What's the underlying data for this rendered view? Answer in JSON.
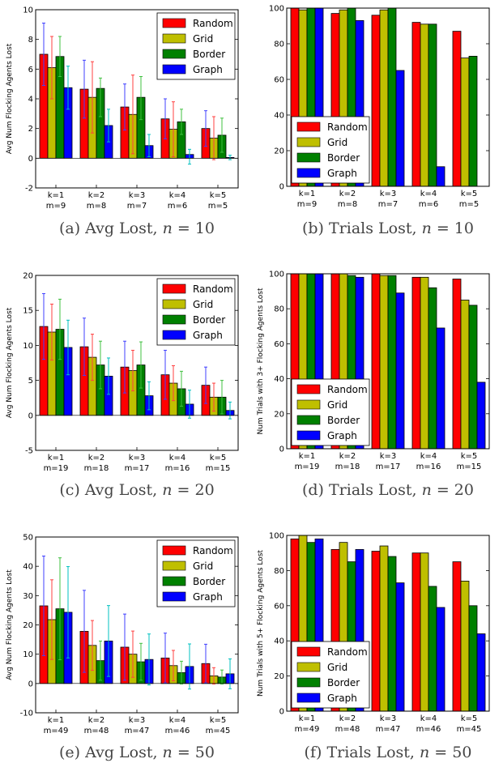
{
  "colors": {
    "Random": "#ff0000",
    "Grid": "#bfbf00",
    "Border": "#008000",
    "Graph": "#0000ff"
  },
  "chart_data": [
    {
      "type": "bar",
      "caption": "(a) Avg Lost, n = 10",
      "ylabel": "Avg Num Flocking Agents Lost",
      "ylim": [
        -2,
        10
      ],
      "yticks": [
        -2,
        0,
        2,
        4,
        6,
        8,
        10
      ],
      "categories": [
        [
          "k=1",
          "m=9"
        ],
        [
          "k=2",
          "m=8"
        ],
        [
          "k=3",
          "m=7"
        ],
        [
          "k=4",
          "m=6"
        ],
        [
          "k=5",
          "m=5"
        ]
      ],
      "legend": "upper-right",
      "series": [
        {
          "name": "Random",
          "values": [
            7.0,
            4.65,
            3.45,
            2.65,
            2.0
          ],
          "err_hi": [
            9.1,
            6.6,
            5.0,
            4.0,
            3.2
          ],
          "err_lo": [
            4.9,
            2.7,
            1.9,
            1.3,
            0.8
          ],
          "err_color": "#4040ff"
        },
        {
          "name": "Grid",
          "values": [
            6.1,
            4.1,
            2.95,
            1.95,
            1.35
          ],
          "err_hi": [
            8.2,
            6.5,
            5.6,
            3.8,
            2.8
          ],
          "err_lo": [
            4.0,
            1.7,
            0.3,
            0.1,
            -0.1
          ],
          "err_color": "#ff4040"
        },
        {
          "name": "Border",
          "values": [
            6.85,
            4.7,
            4.1,
            2.45,
            1.55
          ],
          "err_hi": [
            8.2,
            5.4,
            5.5,
            3.3,
            2.7
          ],
          "err_lo": [
            5.5,
            2.8,
            2.6,
            1.6,
            0.4
          ],
          "err_color": "#40c040"
        },
        {
          "name": "Graph",
          "values": [
            4.75,
            2.2,
            0.85,
            0.25,
            0.05
          ],
          "err_hi": [
            6.2,
            3.3,
            1.6,
            0.6,
            0.2
          ],
          "err_lo": [
            3.3,
            1.1,
            0.1,
            -0.4,
            -0.1
          ],
          "err_color": "#00c0c0"
        }
      ]
    },
    {
      "type": "bar",
      "caption": "(b) Trials Lost, n = 10",
      "ylabel": "",
      "ylim": [
        0,
        100
      ],
      "yticks": [
        0,
        20,
        40,
        60,
        80,
        100
      ],
      "categories": [
        [
          "k=1",
          "m=9"
        ],
        [
          "k=2",
          "m=8"
        ],
        [
          "k=3",
          "m=7"
        ],
        [
          "k=4",
          "m=6"
        ],
        [
          "k=5",
          "m=5"
        ]
      ],
      "legend": "lower-left",
      "series": [
        {
          "name": "Random",
          "values": [
            100,
            97,
            96,
            92,
            87
          ]
        },
        {
          "name": "Grid",
          "values": [
            99,
            99,
            99,
            91,
            72
          ]
        },
        {
          "name": "Border",
          "values": [
            100,
            100,
            100,
            91,
            73
          ]
        },
        {
          "name": "Graph",
          "values": [
            100,
            93,
            65,
            11,
            0
          ]
        }
      ]
    },
    {
      "type": "bar",
      "caption": "(c) Avg Lost, n = 20",
      "ylabel": "Avg Num Flocking Agents Lost",
      "ylim": [
        -5,
        20
      ],
      "yticks": [
        -5,
        0,
        5,
        10,
        15,
        20
      ],
      "categories": [
        [
          "k=1",
          "m=19"
        ],
        [
          "k=2",
          "m=18"
        ],
        [
          "k=3",
          "m=17"
        ],
        [
          "k=4",
          "m=16"
        ],
        [
          "k=5",
          "m=15"
        ]
      ],
      "legend": "upper-right",
      "series": [
        {
          "name": "Random",
          "values": [
            12.7,
            9.8,
            6.9,
            5.8,
            4.3
          ],
          "err_hi": [
            17.4,
            13.9,
            10.6,
            9.3,
            6.9
          ],
          "err_lo": [
            8.0,
            5.7,
            3.2,
            2.3,
            1.7
          ],
          "err_color": "#4040ff"
        },
        {
          "name": "Grid",
          "values": [
            11.9,
            8.3,
            6.4,
            4.6,
            2.6
          ],
          "err_hi": [
            15.9,
            11.6,
            9.3,
            7.1,
            4.6
          ],
          "err_lo": [
            7.9,
            5.0,
            3.5,
            2.1,
            0.6
          ],
          "err_color": "#ff4040"
        },
        {
          "name": "Border",
          "values": [
            12.3,
            7.2,
            7.2,
            3.8,
            2.6
          ],
          "err_hi": [
            16.6,
            10.6,
            10.5,
            6.3,
            5.0
          ],
          "err_lo": [
            8.0,
            3.8,
            3.9,
            1.3,
            0.2
          ],
          "err_color": "#40c040"
        },
        {
          "name": "Graph",
          "values": [
            9.7,
            5.6,
            2.8,
            1.6,
            0.7
          ],
          "err_hi": [
            13.6,
            8.2,
            4.8,
            3.6,
            1.9
          ],
          "err_lo": [
            5.8,
            3.0,
            0.8,
            -0.4,
            -0.5
          ],
          "err_color": "#00c0c0"
        }
      ]
    },
    {
      "type": "bar",
      "caption": "(d) Trials Lost, n = 20",
      "ylabel": "Num Trials with 3+ Flocking Agents Lost",
      "ylim": [
        0,
        100
      ],
      "yticks": [
        0,
        20,
        40,
        60,
        80,
        100
      ],
      "categories": [
        [
          "k=1",
          "m=19"
        ],
        [
          "k=2",
          "m=18"
        ],
        [
          "k=3",
          "m=17"
        ],
        [
          "k=4",
          "m=16"
        ],
        [
          "k=5",
          "m=15"
        ]
      ],
      "legend": "lower-left",
      "series": [
        {
          "name": "Random",
          "values": [
            100,
            100,
            100,
            98,
            97
          ]
        },
        {
          "name": "Grid",
          "values": [
            100,
            100,
            99,
            98,
            85
          ]
        },
        {
          "name": "Border",
          "values": [
            100,
            99,
            99,
            92,
            82
          ]
        },
        {
          "name": "Graph",
          "values": [
            100,
            98,
            89,
            69,
            38
          ]
        }
      ]
    },
    {
      "type": "bar",
      "caption": "(e) Avg Lost, n = 50",
      "ylabel": "Avg Num Flocking Agents Lost",
      "ylim": [
        -10,
        50
      ],
      "yticks": [
        -10,
        0,
        10,
        20,
        30,
        40,
        50
      ],
      "categories": [
        [
          "k=1",
          "m=49"
        ],
        [
          "k=2",
          "m=48"
        ],
        [
          "k=3",
          "m=47"
        ],
        [
          "k=4",
          "m=46"
        ],
        [
          "k=5",
          "m=45"
        ]
      ],
      "legend": "upper-right",
      "series": [
        {
          "name": "Random",
          "values": [
            26.5,
            17.8,
            12.4,
            8.7,
            6.8
          ],
          "err_hi": [
            43.5,
            31.8,
            23.7,
            17.2,
            13.4
          ],
          "err_lo": [
            9.5,
            3.8,
            1.1,
            0.2,
            0.2
          ],
          "err_color": "#4040ff"
        },
        {
          "name": "Grid",
          "values": [
            21.8,
            13.0,
            10.0,
            6.1,
            2.6
          ],
          "err_hi": [
            35.4,
            21.5,
            17.9,
            11.3,
            5.4
          ],
          "err_lo": [
            8.2,
            4.5,
            2.1,
            0.9,
            -0.2
          ],
          "err_color": "#ff4040"
        },
        {
          "name": "Border",
          "values": [
            25.5,
            7.8,
            7.4,
            3.7,
            2.2
          ],
          "err_hi": [
            42.9,
            14.5,
            13.7,
            7.6,
            4.6
          ],
          "err_lo": [
            8.1,
            1.1,
            1.1,
            -0.2,
            -0.2
          ],
          "err_color": "#40c040"
        },
        {
          "name": "Graph",
          "values": [
            24.3,
            14.5,
            8.2,
            5.8,
            3.3
          ],
          "err_hi": [
            39.9,
            26.6,
            16.9,
            13.5,
            8.4
          ],
          "err_lo": [
            8.7,
            2.4,
            -0.5,
            -1.9,
            -1.8
          ],
          "err_color": "#00c0c0"
        }
      ]
    },
    {
      "type": "bar",
      "caption": "(f) Trials Lost, n = 50",
      "ylabel": "Num Trials with 5+ Flocking Agents Lost",
      "ylim": [
        0,
        100
      ],
      "yticks": [
        0,
        20,
        40,
        60,
        80,
        100
      ],
      "categories": [
        [
          "k=1",
          "m=49"
        ],
        [
          "k=2",
          "m=48"
        ],
        [
          "k=3",
          "m=47"
        ],
        [
          "k=4",
          "m=46"
        ],
        [
          "k=5",
          "m=45"
        ]
      ],
      "legend": "lower-left",
      "series": [
        {
          "name": "Random",
          "values": [
            98,
            92,
            91,
            90,
            85
          ]
        },
        {
          "name": "Grid",
          "values": [
            100,
            96,
            94,
            90,
            74
          ]
        },
        {
          "name": "Border",
          "values": [
            96,
            85,
            88,
            71,
            60
          ]
        },
        {
          "name": "Graph",
          "values": [
            98,
            92,
            73,
            59,
            44
          ]
        }
      ]
    }
  ]
}
